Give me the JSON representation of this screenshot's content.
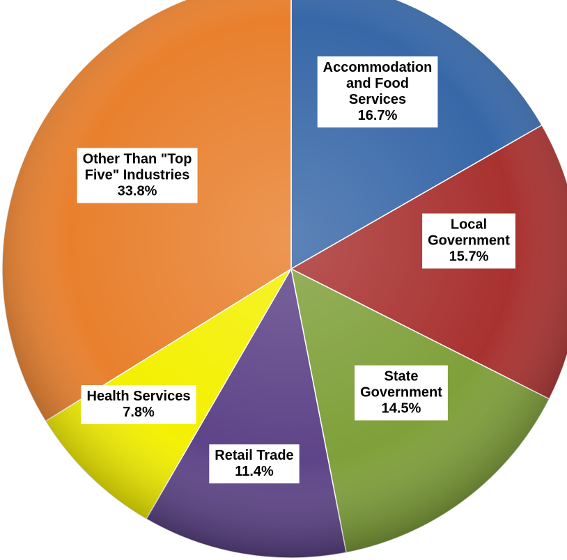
{
  "chart_data": {
    "type": "pie",
    "slices": [
      {
        "label_lines": [
          "Accommodation",
          "and Food",
          "Services"
        ],
        "value": 16.7,
        "value_text": "16.7%",
        "color": "#3868a8"
      },
      {
        "label_lines": [
          "Local",
          "Government"
        ],
        "value": 15.7,
        "value_text": "15.7%",
        "color": "#a83230"
      },
      {
        "label_lines": [
          "State",
          "Government"
        ],
        "value": 14.5,
        "value_text": "14.5%",
        "color": "#7fa03a"
      },
      {
        "label_lines": [
          "Retail Trade"
        ],
        "value": 11.4,
        "value_text": "11.4%",
        "color": "#5e4488"
      },
      {
        "label_lines": [
          "Health Services"
        ],
        "value": 7.8,
        "value_text": "7.8%",
        "color": "#f4f000"
      },
      {
        "label_lines": [
          "Other Than \"Top",
          "Five\" Industries"
        ],
        "value": 33.8,
        "value_text": "33.8%",
        "color": "#e8802e"
      }
    ],
    "start_angle": "12 o'clock",
    "direction": "clockwise",
    "legend": "none",
    "labels": "inside slices, white boxes"
  }
}
